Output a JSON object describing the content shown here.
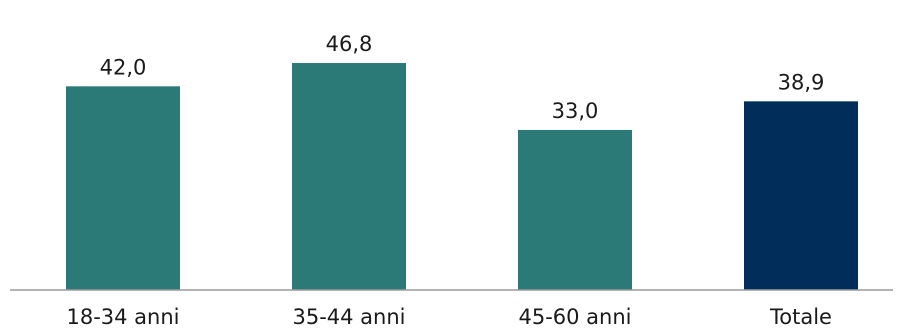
{
  "chart_data": {
    "type": "bar",
    "title": "",
    "xlabel": "",
    "ylabel": "",
    "categories": [
      "18-34 anni",
      "35-44 anni",
      "45-60 anni",
      "Totale"
    ],
    "values": [
      42.0,
      46.8,
      33.0,
      38.9
    ],
    "value_labels": [
      "42,0",
      "46,8",
      "33,0",
      "38,9"
    ],
    "bar_colors": [
      "#2C7A78",
      "#2C7A78",
      "#2C7A78",
      "#002D5A"
    ],
    "axis_color": "#9a9a9a",
    "ylim": [
      0,
      50
    ],
    "grid": false,
    "legend": "none"
  }
}
